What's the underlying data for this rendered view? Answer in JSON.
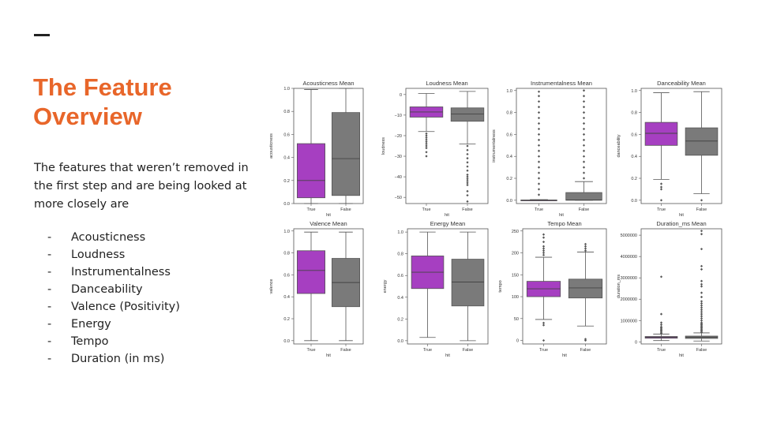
{
  "slide": {
    "title_line1": "The Feature",
    "title_line2": "Overview",
    "intro": "The features that weren’t removed in the first step and are being looked at more closely are",
    "bullet": "-",
    "features": [
      "Acousticness",
      "Loudness",
      "Instrumentalness",
      "Danceability",
      "Valence (Positivity)",
      "Energy",
      "Tempo",
      "Duration (in ms)"
    ],
    "colors": {
      "accent": "#e8662a",
      "true_box": "#a63fc1",
      "false_box": "#7a7a7a"
    }
  },
  "chart_data": [
    {
      "type": "box",
      "title": "Acousticness Mean",
      "xlabel": "hit",
      "ylabel": "acousticness",
      "categories": [
        "True",
        "False"
      ],
      "ylim": [
        0,
        1
      ],
      "yticks": [
        "0.0",
        "0.2",
        "0.4",
        "0.6",
        "0.8",
        "1.0"
      ],
      "ytick_values": [
        0,
        0.2,
        0.4,
        0.6,
        0.8,
        1.0
      ],
      "boxes": [
        {
          "whisker_low": 0.0,
          "q1": 0.05,
          "median": 0.2,
          "q3": 0.52,
          "whisker_high": 0.99,
          "outliers": []
        },
        {
          "whisker_low": 0.0,
          "q1": 0.07,
          "median": 0.39,
          "q3": 0.79,
          "whisker_high": 1.0,
          "outliers": []
        }
      ]
    },
    {
      "type": "box",
      "title": "Loudness Mean",
      "xlabel": "hit",
      "ylabel": "loudness",
      "categories": [
        "True",
        "False"
      ],
      "ylim": [
        -53,
        3
      ],
      "yticks": [
        "0",
        "−10",
        "−20",
        "−30",
        "−40",
        "−50"
      ],
      "ytick_values": [
        0,
        -10,
        -20,
        -30,
        -40,
        -50
      ],
      "boxes": [
        {
          "whisker_low": -18,
          "q1": -11,
          "median": -8.5,
          "q3": -6,
          "whisker_high": 0.5,
          "outliers": [
            -19,
            -20,
            -21,
            -22,
            -23,
            -24,
            -25,
            -26,
            -28,
            -30
          ]
        },
        {
          "whisker_low": -24,
          "q1": -13,
          "median": -9.5,
          "q3": -6.5,
          "whisker_high": 1.5,
          "outliers": [
            -25,
            -27,
            -29,
            -31,
            -33,
            -35,
            -37,
            -39,
            -40,
            -41,
            -42,
            -43,
            -44,
            -47,
            -49,
            -52
          ]
        }
      ]
    },
    {
      "type": "box",
      "title": "Instrumentalness Mean",
      "xlabel": "hit",
      "ylabel": "instrumentalness",
      "categories": [
        "True",
        "False"
      ],
      "ylim": [
        -0.03,
        1.02
      ],
      "yticks": [
        "0.0",
        "0.2",
        "0.4",
        "0.6",
        "0.8",
        "1.0"
      ],
      "ytick_values": [
        0,
        0.2,
        0.4,
        0.6,
        0.8,
        1.0
      ],
      "boxes": [
        {
          "whisker_low": 0.0,
          "q1": 0.0,
          "median": 0.0,
          "q3": 0.002,
          "whisker_high": 0.006,
          "outliers": [
            0.05,
            0.1,
            0.15,
            0.2,
            0.25,
            0.3,
            0.35,
            0.4,
            0.45,
            0.5,
            0.55,
            0.6,
            0.65,
            0.7,
            0.75,
            0.8,
            0.85,
            0.9,
            0.95,
            0.99
          ]
        },
        {
          "whisker_low": 0.0,
          "q1": 0.0,
          "median": 0.003,
          "q3": 0.07,
          "whisker_high": 0.17,
          "outliers": [
            0.2,
            0.25,
            0.3,
            0.35,
            0.4,
            0.45,
            0.5,
            0.55,
            0.6,
            0.65,
            0.7,
            0.75,
            0.8,
            0.85,
            0.9,
            0.95,
            1.0
          ]
        }
      ]
    },
    {
      "type": "box",
      "title": "Danceability Mean",
      "xlabel": "hit",
      "ylabel": "danceability",
      "categories": [
        "True",
        "False"
      ],
      "ylim": [
        -0.03,
        1.02
      ],
      "yticks": [
        "0.0",
        "0.2",
        "0.4",
        "0.6",
        "0.8",
        "1.0"
      ],
      "ytick_values": [
        0,
        0.2,
        0.4,
        0.6,
        0.8,
        1.0
      ],
      "boxes": [
        {
          "whisker_low": 0.19,
          "q1": 0.5,
          "median": 0.61,
          "q3": 0.71,
          "whisker_high": 0.98,
          "outliers": [
            0.15,
            0.12,
            0.1,
            0.0
          ]
        },
        {
          "whisker_low": 0.06,
          "q1": 0.41,
          "median": 0.54,
          "q3": 0.66,
          "whisker_high": 0.99,
          "outliers": [
            0.0
          ]
        }
      ]
    },
    {
      "type": "box",
      "title": "Valence Mean",
      "xlabel": "hit",
      "ylabel": "valence",
      "categories": [
        "True",
        "False"
      ],
      "ylim": [
        -0.03,
        1.02
      ],
      "yticks": [
        "0.0",
        "0.2",
        "0.4",
        "0.6",
        "0.8",
        "1.0"
      ],
      "ytick_values": [
        0,
        0.2,
        0.4,
        0.6,
        0.8,
        1.0
      ],
      "boxes": [
        {
          "whisker_low": 0.0,
          "q1": 0.43,
          "median": 0.64,
          "q3": 0.82,
          "whisker_high": 0.99,
          "outliers": []
        },
        {
          "whisker_low": 0.0,
          "q1": 0.31,
          "median": 0.53,
          "q3": 0.75,
          "whisker_high": 0.99,
          "outliers": []
        }
      ]
    },
    {
      "type": "box",
      "title": "Energy Mean",
      "xlabel": "hit",
      "ylabel": "energy",
      "categories": [
        "True",
        "False"
      ],
      "ylim": [
        -0.03,
        1.03
      ],
      "yticks": [
        "0.0",
        "0.2",
        "0.4",
        "0.6",
        "0.8",
        "1.0"
      ],
      "ytick_values": [
        0,
        0.2,
        0.4,
        0.6,
        0.8,
        1.0
      ],
      "boxes": [
        {
          "whisker_low": 0.03,
          "q1": 0.48,
          "median": 0.63,
          "q3": 0.78,
          "whisker_high": 1.0,
          "outliers": []
        },
        {
          "whisker_low": 0.0,
          "q1": 0.32,
          "median": 0.54,
          "q3": 0.75,
          "whisker_high": 1.0,
          "outliers": []
        }
      ]
    },
    {
      "type": "box",
      "title": "Tempo Mean",
      "xlabel": "hit",
      "ylabel": "tempo",
      "categories": [
        "True",
        "False"
      ],
      "ylim": [
        -8,
        255
      ],
      "yticks": [
        "0",
        "50",
        "100",
        "150",
        "200",
        "250"
      ],
      "ytick_values": [
        0,
        50,
        100,
        150,
        200,
        250
      ],
      "boxes": [
        {
          "whisker_low": 48,
          "q1": 100,
          "median": 118,
          "q3": 135,
          "whisker_high": 190,
          "outliers": [
            40,
            35,
            195,
            200,
            205,
            210,
            215,
            225,
            235,
            242,
            0
          ]
        },
        {
          "whisker_low": 33,
          "q1": 97,
          "median": 120,
          "q3": 140,
          "whisker_high": 202,
          "outliers": [
            205,
            210,
            215,
            220,
            3,
            0
          ]
        }
      ]
    },
    {
      "type": "box",
      "title": "Duration_ms Mean",
      "xlabel": "hit",
      "ylabel": "duration_ms",
      "categories": [
        "True",
        "False"
      ],
      "ylim": [
        -100000,
        5300000
      ],
      "yticks": [
        "0",
        "1000000",
        "2000000",
        "3000000",
        "4000000",
        "5000000"
      ],
      "ytick_values": [
        0,
        1000000,
        2000000,
        3000000,
        4000000,
        5000000
      ],
      "boxes": [
        {
          "whisker_low": 60000,
          "q1": 170000,
          "median": 210000,
          "q3": 250000,
          "whisker_high": 360000,
          "outliers": [
            400000,
            450000,
            500000,
            550000,
            600000,
            650000,
            700000,
            800000,
            900000,
            1300000,
            3050000
          ]
        },
        {
          "whisker_low": 40000,
          "q1": 160000,
          "median": 215000,
          "q3": 270000,
          "whisker_high": 420000,
          "outliers": [
            450000,
            500000,
            550000,
            600000,
            650000,
            700000,
            750000,
            800000,
            850000,
            900000,
            1000000,
            1100000,
            1200000,
            1300000,
            1400000,
            1500000,
            1600000,
            1700000,
            1800000,
            1900000,
            2100000,
            2300000,
            2600000,
            2700000,
            2850000,
            3400000,
            3550000,
            4350000,
            5050000,
            5200000
          ]
        }
      ]
    }
  ]
}
